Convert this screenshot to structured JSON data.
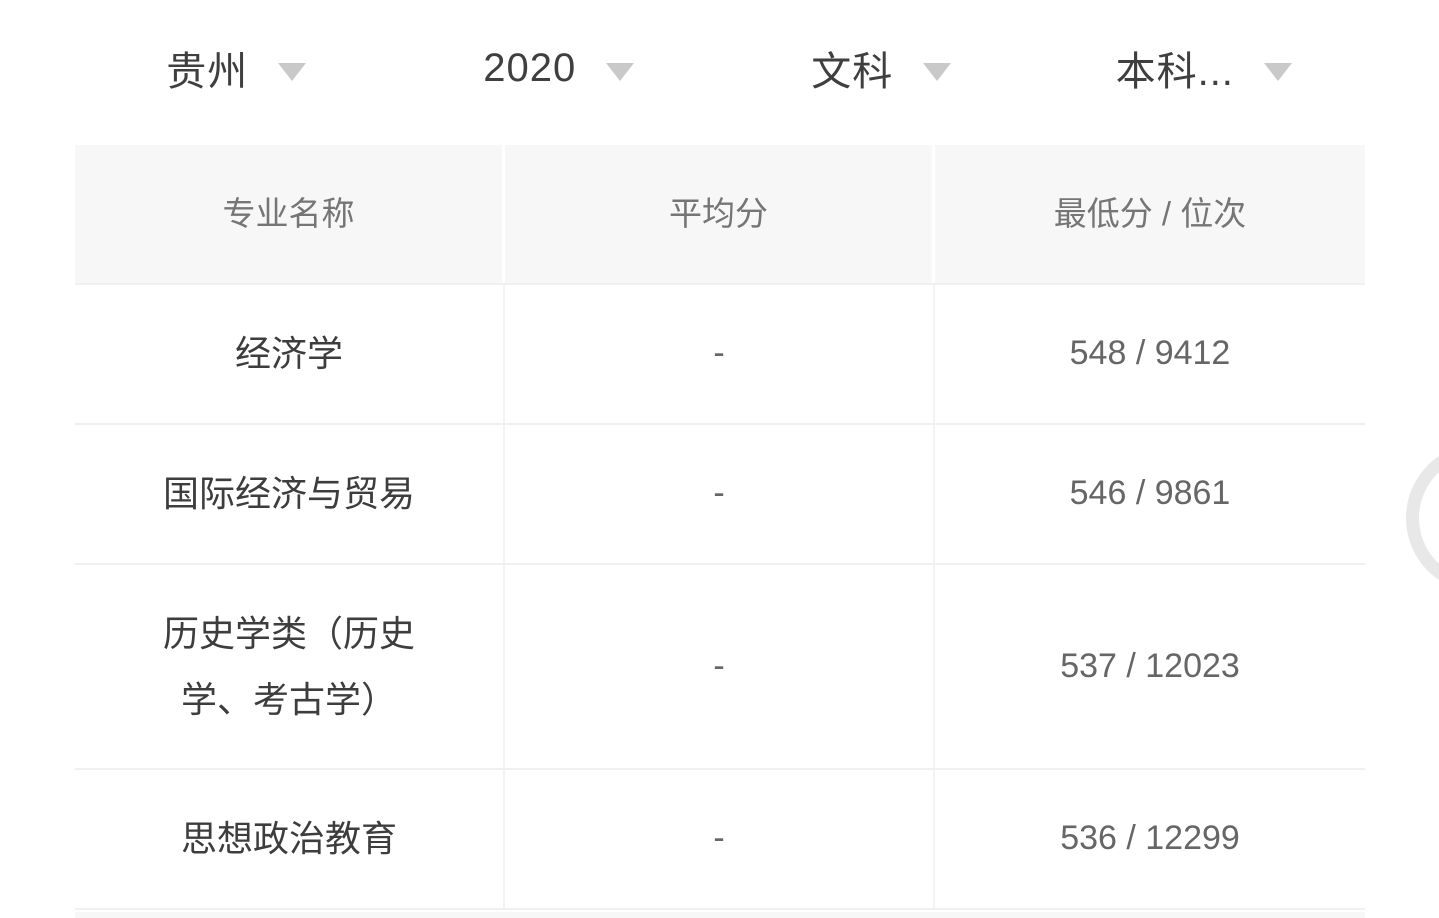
{
  "filters": [
    {
      "id": "province",
      "label": "贵州"
    },
    {
      "id": "year",
      "label": "2020"
    },
    {
      "id": "subject",
      "label": "文科"
    },
    {
      "id": "batch",
      "label": "本科..."
    }
  ],
  "table": {
    "columns": [
      "专业名称",
      "平均分",
      "最低分 / 位次"
    ],
    "rows": [
      {
        "major": "经济学",
        "avg": "-",
        "min_rank": "548 / 9412"
      },
      {
        "major": "国际经济与贸易",
        "avg": "-",
        "min_rank": "546 / 9861"
      },
      {
        "major": "历史学类（历史学、考古学）",
        "avg": "-",
        "min_rank": "537 / 12023"
      },
      {
        "major": "思想政治教育",
        "avg": "-",
        "min_rank": "536 / 12299"
      }
    ]
  },
  "icons": {
    "dropdown_arrow": "triangle-down"
  },
  "colors": {
    "filter_text": "#3f3f3f",
    "dropdown_arrow": "#c9c9c9",
    "header_bg": "#f7f7f7",
    "header_text": "#757575",
    "cell_text": "#3d3d3d",
    "value_text": "#666666",
    "grid_line": "#f0f0f0",
    "floating_arc": "#e8e8e8"
  }
}
